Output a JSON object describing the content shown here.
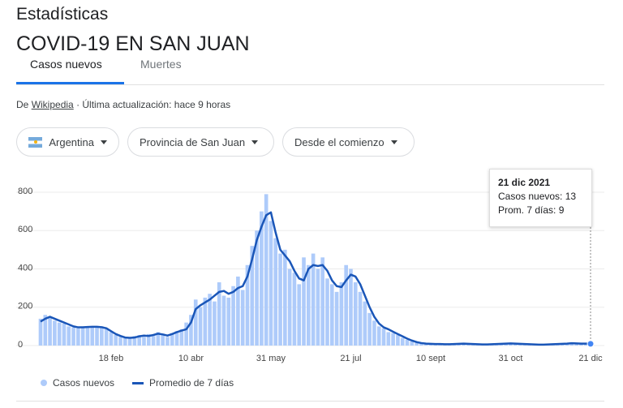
{
  "header": {
    "title": "Estadísticas",
    "subtitle": "COVID-19 EN SAN JUAN"
  },
  "tabs": [
    "Casos nuevos",
    "Muertes"
  ],
  "source": {
    "prefix": "De",
    "link": "Wikipedia",
    "text": "· Última actualización: hace 9 horas"
  },
  "filters": [
    "Argentina",
    "Provincia de San Juan",
    "Desde el comienzo"
  ],
  "tooltip": {
    "date": "21 dic 2021",
    "lines": [
      "Casos nuevos: 13",
      "Prom. 7 días: 9"
    ]
  },
  "chart_data": {
    "type": "bar",
    "categories": [
      null,
      null,
      null,
      null,
      null,
      null,
      null,
      null,
      null,
      null,
      null,
      null,
      null,
      null,
      null,
      "18 feb",
      null,
      null,
      null,
      null,
      null,
      null,
      null,
      null,
      null,
      null,
      null,
      null,
      null,
      null,
      null,
      null,
      "10 abr",
      null,
      null,
      null,
      null,
      null,
      null,
      null,
      null,
      null,
      null,
      null,
      null,
      null,
      null,
      null,
      null,
      "31 may",
      null,
      null,
      null,
      null,
      null,
      null,
      null,
      null,
      null,
      null,
      null,
      null,
      null,
      null,
      null,
      null,
      "21 jul",
      null,
      null,
      null,
      null,
      null,
      null,
      null,
      null,
      null,
      null,
      null,
      null,
      null,
      null,
      null,
      null,
      "10 sept",
      null,
      null,
      null,
      null,
      null,
      null,
      null,
      null,
      null,
      null,
      null,
      null,
      null,
      null,
      null,
      null,
      "31 oct",
      null,
      null,
      null,
      null,
      null,
      null,
      null,
      null,
      null,
      null,
      null,
      null,
      null,
      null,
      null,
      null,
      "21 dic"
    ],
    "series": [
      {
        "name": "Casos nuevos",
        "type": "bar",
        "color": "#aecbfa",
        "values": [
          140,
          160,
          150,
          130,
          120,
          115,
          100,
          95,
          90,
          100,
          95,
          100,
          98,
          92,
          85,
          70,
          55,
          45,
          40,
          38,
          50,
          55,
          45,
          60,
          50,
          70,
          55,
          45,
          65,
          75,
          85,
          120,
          160,
          240,
          200,
          250,
          270,
          230,
          330,
          260,
          250,
          310,
          360,
          290,
          420,
          520,
          600,
          700,
          790,
          650,
          560,
          480,
          500,
          400,
          380,
          320,
          460,
          420,
          480,
          400,
          460,
          350,
          320,
          280,
          330,
          420,
          400,
          330,
          280,
          230,
          170,
          130,
          100,
          90,
          70,
          65,
          55,
          40,
          30,
          22,
          15,
          12,
          10,
          10,
          7,
          9,
          6,
          8,
          9,
          10,
          11,
          8,
          7,
          6,
          5,
          7,
          8,
          9,
          10,
          12,
          10,
          9,
          8,
          8,
          6,
          5,
          4,
          6,
          7,
          8,
          9,
          10,
          11,
          13,
          12,
          9,
          11,
          13
        ]
      },
      {
        "name": "Promedio de 7 días",
        "type": "line",
        "color": "#1a56b8",
        "values": [
          125,
          140,
          150,
          140,
          130,
          120,
          110,
          100,
          95,
          95,
          97,
          98,
          98,
          96,
          90,
          75,
          60,
          50,
          42,
          40,
          42,
          48,
          52,
          50,
          55,
          62,
          58,
          52,
          60,
          70,
          78,
          85,
          120,
          190,
          210,
          225,
          240,
          260,
          280,
          285,
          270,
          280,
          300,
          310,
          360,
          450,
          550,
          620,
          680,
          695,
          590,
          500,
          470,
          440,
          390,
          350,
          340,
          400,
          420,
          415,
          420,
          390,
          340,
          310,
          305,
          340,
          370,
          360,
          320,
          260,
          200,
          150,
          115,
          95,
          85,
          72,
          60,
          48,
          36,
          26,
          18,
          13,
          10,
          9,
          8,
          8,
          7,
          7,
          8,
          9,
          10,
          9,
          8,
          7,
          6,
          6,
          7,
          8,
          9,
          10,
          11,
          10,
          9,
          8,
          7,
          6,
          5,
          5,
          6,
          7,
          8,
          9,
          10,
          12,
          11,
          10,
          10,
          9
        ]
      }
    ],
    "ylim": [
      0,
      800
    ],
    "yticks": [
      0,
      200,
      400,
      600,
      800
    ],
    "grid": true
  }
}
